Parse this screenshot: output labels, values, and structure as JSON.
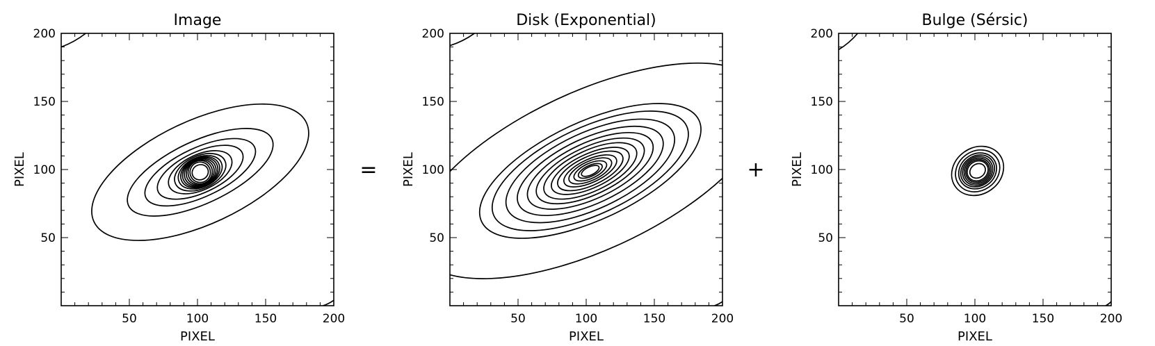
{
  "figure": {
    "operators": [
      "=",
      "+"
    ]
  },
  "chart_data": [
    {
      "type": "contour",
      "title": "Image",
      "xlabel": "PIXEL",
      "ylabel": "PIXEL",
      "xlim": [
        0,
        200
      ],
      "ylim": [
        0,
        200
      ],
      "xticks": [
        50,
        100,
        150,
        200
      ],
      "yticks": [
        50,
        100,
        150,
        200
      ],
      "center": [
        102,
        98
      ],
      "angle_deg": 25,
      "levels": [
        {
          "a": 86,
          "b": 38
        },
        {
          "a": 58,
          "b": 23
        },
        {
          "a": 44,
          "b": 18
        },
        {
          "a": 34,
          "b": 15
        },
        {
          "a": 25,
          "b": 13
        },
        {
          "a": 20,
          "b": 12
        },
        {
          "a": 17,
          "b": 11
        },
        {
          "a": 15,
          "b": 10.5
        },
        {
          "a": 13.5,
          "b": 10
        },
        {
          "a": 12,
          "b": 9.5
        },
        {
          "a": 10.5,
          "b": 9
        },
        {
          "a": 9,
          "b": 8.5
        },
        {
          "a": 7.5,
          "b": 7.5
        }
      ],
      "core": {
        "a": 6,
        "b": 5.5
      },
      "corner_contours": [
        {
          "from": [
            0,
            190
          ],
          "to": [
            18,
            200
          ]
        },
        {
          "from": [
            192,
            0
          ],
          "to": [
            200,
            4
          ]
        }
      ]
    },
    {
      "type": "contour",
      "title": "Disk (Exponential)",
      "xlabel": "PIXEL",
      "ylabel": "PIXEL",
      "xlim": [
        0,
        200
      ],
      "ylim": [
        0,
        200
      ],
      "xticks": [
        50,
        100,
        150,
        200
      ],
      "yticks": [
        50,
        100,
        150,
        200
      ],
      "center": [
        103,
        99
      ],
      "angle_deg": 25,
      "levels": [
        {
          "a": 140,
          "b": 58
        },
        {
          "a": 88,
          "b": 36
        },
        {
          "a": 78,
          "b": 32
        },
        {
          "a": 67,
          "b": 28
        },
        {
          "a": 58,
          "b": 24
        },
        {
          "a": 50,
          "b": 20.5
        },
        {
          "a": 43,
          "b": 17.5
        },
        {
          "a": 37,
          "b": 15
        },
        {
          "a": 31,
          "b": 12.5
        },
        {
          "a": 26,
          "b": 10.5
        },
        {
          "a": 21,
          "b": 8.5
        },
        {
          "a": 17,
          "b": 7
        },
        {
          "a": 13,
          "b": 5.5
        },
        {
          "a": 9.5,
          "b": 4
        }
      ],
      "core": {
        "a": 7,
        "b": 3
      },
      "corner_contours": [
        {
          "from": [
            0,
            191
          ],
          "to": [
            18,
            200
          ]
        },
        {
          "from": [
            194,
            0
          ],
          "to": [
            200,
            3
          ]
        }
      ]
    },
    {
      "type": "contour",
      "title": "Bulge (Sérsic)",
      "xlabel": "PIXEL",
      "ylabel": "PIXEL",
      "xlim": [
        0,
        200
      ],
      "ylim": [
        0,
        200
      ],
      "xticks": [
        50,
        100,
        150,
        200
      ],
      "yticks": [
        50,
        100,
        150,
        200
      ],
      "center": [
        102,
        99
      ],
      "angle_deg": 35,
      "levels": [
        {
          "a": 20,
          "b": 17
        },
        {
          "a": 17,
          "b": 14.5
        },
        {
          "a": 14.5,
          "b": 12.5
        },
        {
          "a": 13,
          "b": 11
        },
        {
          "a": 11.5,
          "b": 10
        },
        {
          "a": 10.2,
          "b": 9
        },
        {
          "a": 9,
          "b": 8
        },
        {
          "a": 8,
          "b": 7
        }
      ],
      "core": {
        "a": 6,
        "b": 5
      },
      "corner_contours": [
        {
          "from": [
            0,
            188
          ],
          "to": [
            14,
            200
          ]
        },
        {
          "from": [
            196,
            0
          ],
          "to": [
            200,
            3
          ]
        }
      ]
    }
  ]
}
